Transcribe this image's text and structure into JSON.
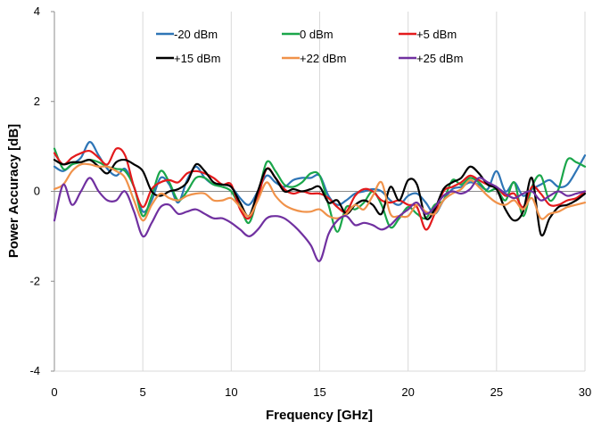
{
  "chart_data": {
    "type": "line",
    "title": "",
    "xlabel": "Frequency [GHz]",
    "ylabel": "Power Accuracy [dB]",
    "xlim": [
      0,
      30
    ],
    "ylim": [
      -4,
      4
    ],
    "xticks": [
      0,
      5,
      10,
      15,
      20,
      25,
      30
    ],
    "yticks": [
      -4,
      -2,
      0,
      2,
      4
    ],
    "grid": "vertical",
    "legend_position": "top-center",
    "series": [
      {
        "name": "-20 dBm",
        "color": "#2e75b6",
        "x": [
          0,
          0.5,
          1,
          1.5,
          2,
          2.5,
          3,
          3.5,
          4,
          4.5,
          5,
          5.5,
          6,
          6.5,
          7,
          7.5,
          8,
          8.5,
          9,
          9.5,
          10,
          10.5,
          11,
          11.5,
          12,
          12.5,
          13,
          13.5,
          14,
          14.5,
          15,
          15.5,
          16,
          16.5,
          17,
          17.5,
          18,
          18.5,
          19,
          19.5,
          20,
          20.5,
          21,
          21.5,
          22,
          22.5,
          23,
          23.5,
          24,
          24.5,
          25,
          25.5,
          26,
          26.5,
          27,
          27.5,
          28,
          28.5,
          29,
          29.5,
          30
        ],
        "y": [
          0.55,
          0.45,
          0.6,
          0.75,
          1.1,
          0.8,
          0.5,
          0.35,
          0.5,
          0.1,
          -0.45,
          -0.2,
          0.3,
          0.15,
          -0.25,
          0.25,
          0.55,
          0.3,
          0.15,
          0.15,
          0.1,
          -0.15,
          -0.3,
          0.0,
          0.35,
          0.2,
          0.1,
          0.25,
          0.3,
          0.3,
          0.35,
          -0.1,
          -0.3,
          -0.2,
          -0.05,
          0.0,
          0.05,
          0.0,
          -0.2,
          -0.3,
          -0.1,
          -0.05,
          -0.25,
          -0.5,
          -0.2,
          0.05,
          0.1,
          0.2,
          0.15,
          0.05,
          0.45,
          0.0,
          0.2,
          -0.1,
          0.05,
          0.15,
          0.25,
          0.1,
          0.15,
          0.45,
          0.8
        ]
      },
      {
        "name": "0 dBm",
        "color": "#1aa64a",
        "x": [
          0,
          0.5,
          1,
          1.5,
          2,
          2.5,
          3,
          3.5,
          4,
          4.5,
          5,
          5.5,
          6,
          6.5,
          7,
          7.5,
          8,
          8.5,
          9,
          9.5,
          10,
          10.5,
          11,
          11.5,
          12,
          12.5,
          13,
          13.5,
          14,
          14.5,
          15,
          15.5,
          16,
          16.5,
          17,
          17.5,
          18,
          18.5,
          19,
          19.5,
          20,
          20.5,
          21,
          21.5,
          22,
          22.5,
          23,
          23.5,
          24,
          24.5,
          25,
          25.5,
          26,
          26.5,
          27,
          27.5,
          28,
          28.5,
          29,
          29.5,
          30
        ],
        "y": [
          0.95,
          0.5,
          0.6,
          0.65,
          0.7,
          0.65,
          0.55,
          0.5,
          0.45,
          0.1,
          -0.55,
          -0.1,
          0.45,
          0.2,
          -0.2,
          0.0,
          0.3,
          0.3,
          0.15,
          0.1,
          0.0,
          -0.35,
          -0.7,
          -0.1,
          0.65,
          0.45,
          0.15,
          0.1,
          0.2,
          0.4,
          0.35,
          -0.3,
          -0.9,
          -0.35,
          -0.4,
          -0.25,
          0.0,
          -0.3,
          -0.8,
          -0.6,
          -0.35,
          -0.5,
          -0.6,
          -0.3,
          -0.2,
          0.25,
          0.15,
          0.3,
          0.2,
          0.0,
          0.05,
          -0.2,
          0.2,
          -0.55,
          0.1,
          0.35,
          -0.2,
          0.05,
          0.7,
          0.65,
          0.55
        ]
      },
      {
        "name": "+5 dBm",
        "color": "#e31a1c",
        "x": [
          0,
          0.5,
          1,
          1.5,
          2,
          2.5,
          3,
          3.5,
          4,
          4.5,
          5,
          5.5,
          6,
          6.5,
          7,
          7.5,
          8,
          8.5,
          9,
          9.5,
          10,
          10.5,
          11,
          11.5,
          12,
          12.5,
          13,
          13.5,
          14,
          14.5,
          15,
          15.5,
          16,
          16.5,
          17,
          17.5,
          18,
          18.5,
          19,
          19.5,
          20,
          20.5,
          21,
          21.5,
          22,
          22.5,
          23,
          23.5,
          24,
          24.5,
          25,
          25.5,
          26,
          26.5,
          27,
          27.5,
          28,
          28.5,
          29,
          29.5,
          30
        ],
        "y": [
          0.85,
          0.6,
          0.75,
          0.85,
          0.9,
          0.75,
          0.6,
          0.95,
          0.8,
          0.1,
          -0.35,
          0.05,
          0.2,
          0.25,
          0.2,
          0.4,
          0.45,
          0.4,
          0.3,
          0.15,
          0.15,
          -0.4,
          -0.6,
          -0.15,
          0.5,
          0.3,
          0.05,
          -0.05,
          0.0,
          -0.05,
          -0.05,
          -0.15,
          -0.35,
          -0.45,
          -0.1,
          0.05,
          0.0,
          -0.2,
          -0.25,
          -0.2,
          -0.3,
          -0.35,
          -0.85,
          -0.5,
          0.0,
          0.1,
          0.2,
          0.35,
          0.25,
          0.15,
          0.1,
          -0.1,
          -0.05,
          -0.35,
          0.1,
          -0.05,
          -0.3,
          -0.3,
          -0.2,
          -0.15,
          0.0
        ]
      },
      {
        "name": "+15 dBm",
        "color": "#000000",
        "x": [
          0,
          0.5,
          1,
          1.5,
          2,
          2.5,
          3,
          3.5,
          4,
          4.5,
          5,
          5.5,
          6,
          6.5,
          7,
          7.5,
          8,
          8.5,
          9,
          9.5,
          10,
          10.5,
          11,
          11.5,
          12,
          12.5,
          13,
          13.5,
          14,
          14.5,
          15,
          15.5,
          16,
          16.5,
          17,
          17.5,
          18,
          18.5,
          19,
          19.5,
          20,
          20.5,
          21,
          21.5,
          22,
          22.5,
          23,
          23.5,
          24,
          24.5,
          25,
          25.5,
          26,
          26.5,
          27,
          27.5,
          28,
          28.5,
          29,
          29.5,
          30
        ],
        "y": [
          0.7,
          0.6,
          0.65,
          0.65,
          0.7,
          0.55,
          0.4,
          0.65,
          0.7,
          0.6,
          0.45,
          0.0,
          -0.1,
          0.0,
          0.05,
          0.2,
          0.6,
          0.45,
          0.2,
          0.15,
          0.1,
          -0.25,
          -0.55,
          0.0,
          0.5,
          0.3,
          0.0,
          0.05,
          0.0,
          0.05,
          0.1,
          -0.25,
          -0.2,
          -0.5,
          -0.3,
          -0.2,
          -0.3,
          -0.5,
          0.1,
          -0.2,
          0.25,
          0.15,
          -0.6,
          -0.4,
          0.05,
          0.2,
          0.3,
          0.55,
          0.4,
          0.15,
          0.05,
          -0.4,
          -0.65,
          -0.45,
          0.3,
          -0.95,
          -0.6,
          -0.35,
          -0.3,
          -0.2,
          -0.05
        ]
      },
      {
        "name": "+22 dBm",
        "color": "#f0924a",
        "x": [
          0,
          0.5,
          1,
          1.5,
          2,
          2.5,
          3,
          3.5,
          4,
          4.5,
          5,
          5.5,
          6,
          6.5,
          7,
          7.5,
          8,
          8.5,
          9,
          9.5,
          10,
          10.5,
          11,
          11.5,
          12,
          12.5,
          13,
          13.5,
          14,
          14.5,
          15,
          15.5,
          16,
          16.5,
          17,
          17.5,
          18,
          18.5,
          19,
          19.5,
          20,
          20.5,
          21,
          21.5,
          22,
          22.5,
          23,
          23.5,
          24,
          24.5,
          25,
          25.5,
          26,
          26.5,
          27,
          27.5,
          28,
          28.5,
          29,
          29.5,
          30
        ],
        "y": [
          0.05,
          0.15,
          0.45,
          0.6,
          0.6,
          0.55,
          0.55,
          0.45,
          0.3,
          -0.2,
          -0.65,
          -0.3,
          -0.05,
          -0.15,
          -0.2,
          -0.1,
          -0.05,
          -0.05,
          -0.2,
          -0.2,
          -0.15,
          -0.35,
          -0.55,
          -0.2,
          0.2,
          -0.1,
          -0.3,
          -0.4,
          -0.45,
          -0.45,
          -0.4,
          -0.55,
          -0.6,
          -0.5,
          -0.3,
          -0.4,
          -0.1,
          0.2,
          -0.5,
          -0.55,
          -0.55,
          -0.3,
          -0.45,
          -0.5,
          -0.2,
          -0.05,
          0.05,
          0.25,
          0.1,
          -0.1,
          -0.25,
          -0.3,
          -0.2,
          -0.4,
          -0.15,
          -0.6,
          -0.5,
          -0.45,
          -0.35,
          -0.3,
          -0.25
        ]
      },
      {
        "name": "+25 dBm",
        "color": "#7030a0",
        "x": [
          0,
          0.5,
          1,
          1.5,
          2,
          2.5,
          3,
          3.5,
          4,
          4.5,
          5,
          5.5,
          6,
          6.5,
          7,
          7.5,
          8,
          8.5,
          9,
          9.5,
          10,
          10.5,
          11,
          11.5,
          12,
          12.5,
          13,
          13.5,
          14,
          14.5,
          15,
          15.5,
          16,
          16.5,
          17,
          17.5,
          18,
          18.5,
          19,
          19.5,
          20,
          20.5,
          21,
          21.5,
          22,
          22.5,
          23,
          23.5,
          24,
          24.5,
          25,
          25.5,
          26,
          26.5,
          27,
          27.5,
          28,
          28.5,
          29,
          29.5,
          30
        ],
        "y": [
          -0.65,
          0.15,
          -0.3,
          0.0,
          0.3,
          0.0,
          -0.2,
          -0.2,
          0.0,
          -0.45,
          -1.0,
          -0.7,
          -0.35,
          -0.3,
          -0.5,
          -0.45,
          -0.4,
          -0.5,
          -0.6,
          -0.6,
          -0.7,
          -0.85,
          -1.0,
          -0.85,
          -0.6,
          -0.55,
          -0.6,
          -0.75,
          -0.95,
          -1.2,
          -1.55,
          -0.95,
          -0.65,
          -0.55,
          -0.75,
          -0.7,
          -0.75,
          -0.85,
          -0.75,
          -0.55,
          -0.4,
          -0.25,
          -0.5,
          -0.35,
          -0.1,
          0.0,
          -0.05,
          0.05,
          0.3,
          0.2,
          0.1,
          -0.05,
          -0.15,
          -0.05,
          0.0,
          -0.2,
          -0.1,
          0.0,
          -0.1,
          -0.05,
          0.0
        ]
      }
    ]
  }
}
